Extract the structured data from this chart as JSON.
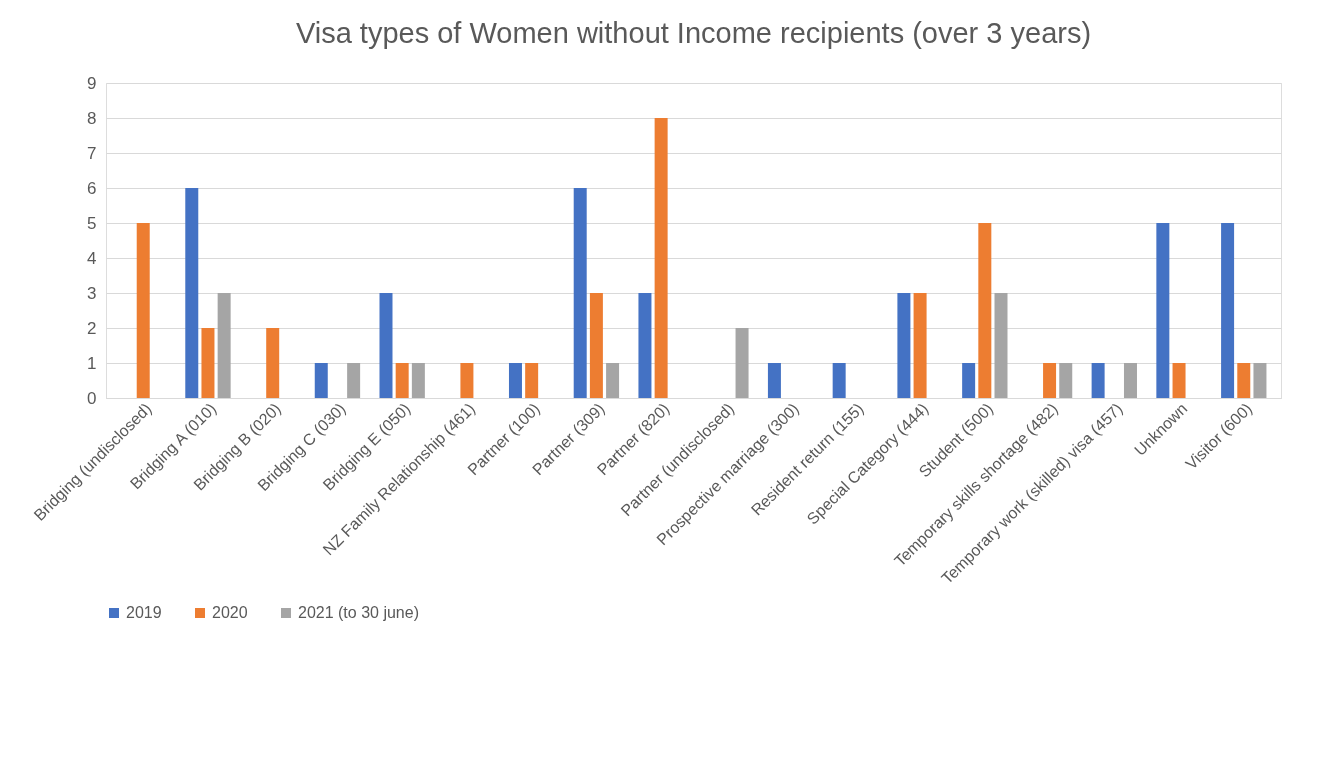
{
  "chart_data": {
    "type": "bar",
    "title": "Visa types of Women without Income recipients (over 3 years)",
    "categories": [
      "Bridging (undisclosed)",
      "Bridging A (010)",
      "Bridging B (020)",
      "Bridging C (030)",
      "Bridging E (050)",
      "NZ Family Relationship (461)",
      "Partner (100)",
      "Partner (309)",
      "Partner (820)",
      "Partner (undisclosed)",
      "Prospective marriage (300)",
      "Resident return (155)",
      "Special Category (444)",
      "Student (500)",
      "Temporary skills shortage (482)",
      "Temporary work (skilled) visa (457)",
      "Unknown",
      "Visitor (600)"
    ],
    "series": [
      {
        "name": "2019",
        "color": "#4472c4",
        "values": [
          null,
          6,
          null,
          1,
          3,
          null,
          1,
          6,
          3,
          null,
          1,
          1,
          3,
          1,
          null,
          1,
          5,
          5
        ]
      },
      {
        "name": "2020",
        "color": "#ed7d31",
        "values": [
          5,
          2,
          2,
          null,
          1,
          1,
          1,
          3,
          8,
          null,
          null,
          null,
          3,
          5,
          1,
          null,
          1,
          1
        ]
      },
      {
        "name": "2021 (to 30 june)",
        "color": "#a5a5a5",
        "values": [
          null,
          3,
          null,
          1,
          1,
          null,
          null,
          1,
          null,
          2,
          null,
          null,
          null,
          3,
          1,
          1,
          null,
          1
        ]
      }
    ],
    "ylim": [
      0,
      9
    ],
    "yticks": [
      0,
      1,
      2,
      3,
      4,
      5,
      6,
      7,
      8,
      9
    ],
    "grid": "y",
    "legend": "bottom"
  }
}
